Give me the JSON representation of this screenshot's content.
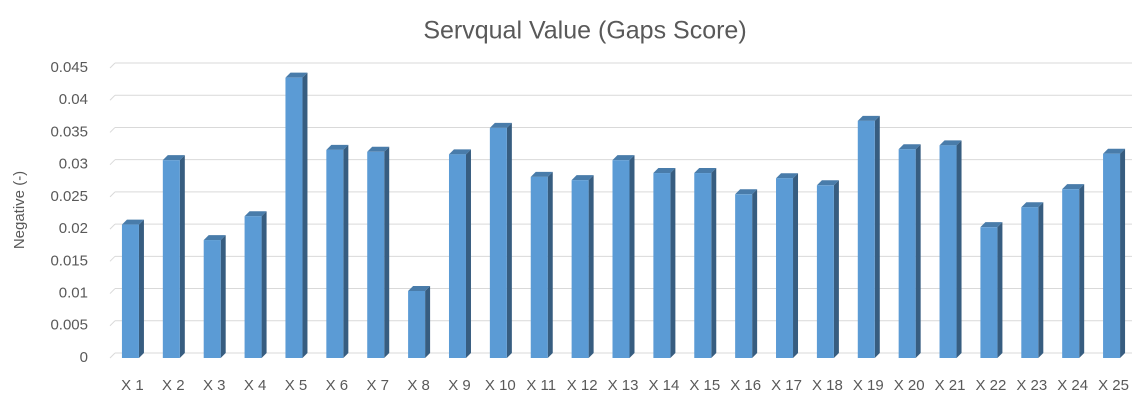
{
  "chart_data": {
    "type": "bar",
    "title": "Servqual Value (Gaps Score)",
    "y_label": "Negative (-)",
    "categories": [
      "X 1",
      "X 2",
      "X 3",
      "X 4",
      "X 5",
      "X 6",
      "X 7",
      "X 8",
      "X 9",
      "X 10",
      "X 11",
      "X 12",
      "X 13",
      "X 14",
      "X 15",
      "X 16",
      "X 17",
      "X 18",
      "X 19",
      "X 20",
      "X 21",
      "X 22",
      "X 23",
      "X 24",
      "X 25"
    ],
    "values": [
      0.0207,
      0.0307,
      0.0183,
      0.022,
      0.0435,
      0.0323,
      0.032,
      0.0104,
      0.0316,
      0.0357,
      0.0281,
      0.0276,
      0.0307,
      0.0287,
      0.0287,
      0.0254,
      0.0279,
      0.0268,
      0.0368,
      0.0324,
      0.033,
      0.0203,
      0.0234,
      0.0262,
      0.0317
    ],
    "color": "#5b9bd5",
    "ylim": [
      0,
      0.045
    ],
    "yticks": [
      0,
      0.005,
      0.01,
      0.015,
      0.02,
      0.025,
      0.03,
      0.035,
      0.04,
      0.045
    ],
    "grid": true
  }
}
